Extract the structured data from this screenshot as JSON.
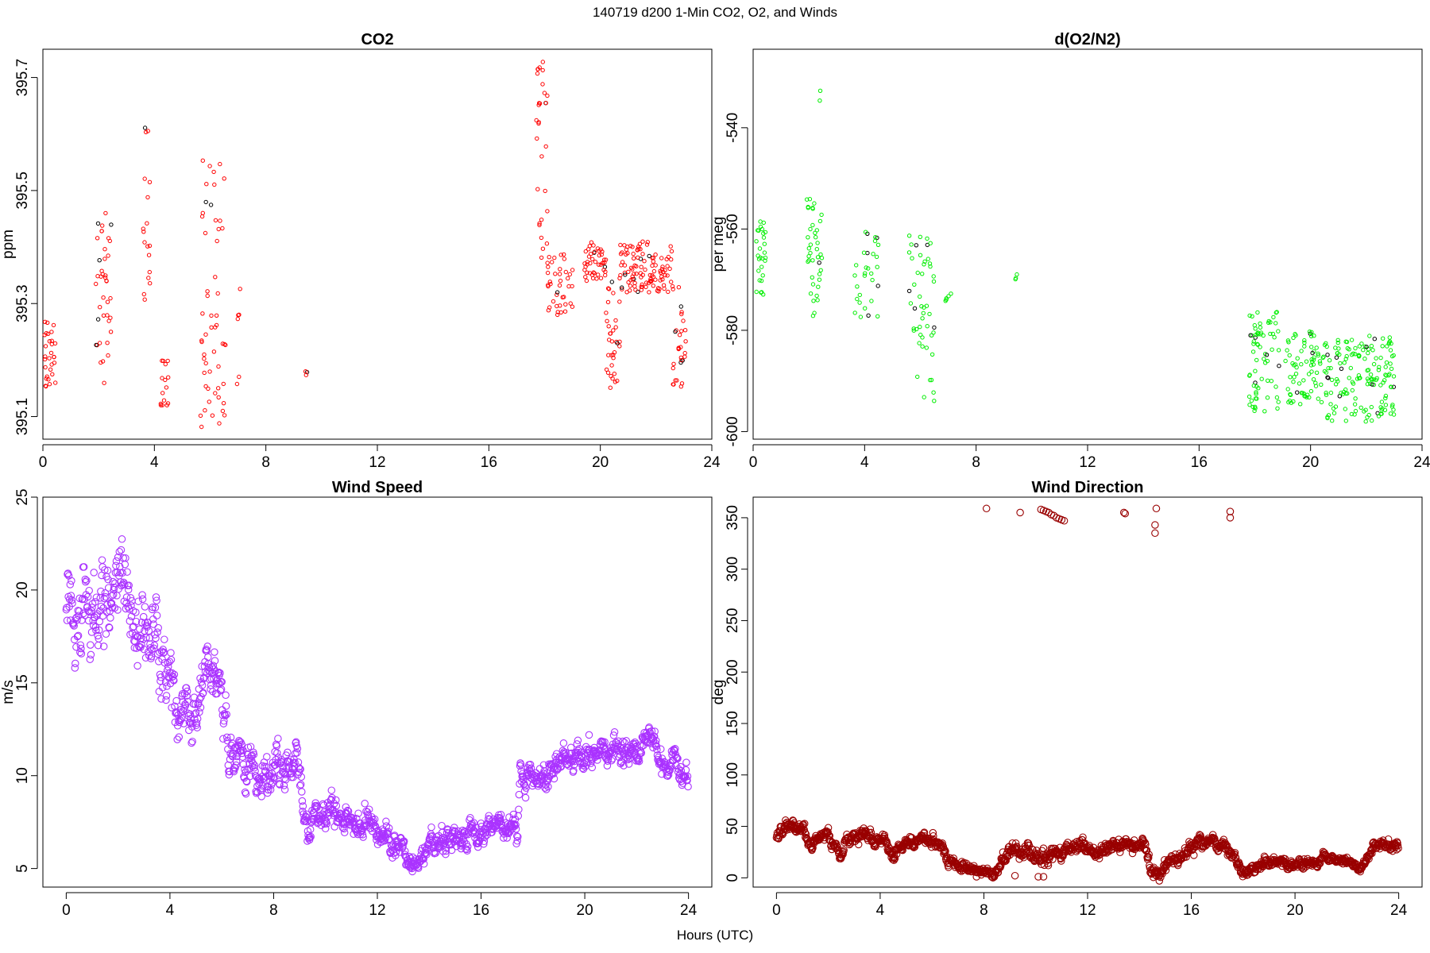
{
  "figure": {
    "title": "140719   d200   1-Min CO2, O2, and Winds",
    "xlabel": "Hours (UTC)"
  },
  "chart_data": [
    {
      "type": "scatter",
      "title": "CO2",
      "xlabel": "",
      "ylabel": "ppm",
      "xlim": [
        0,
        24
      ],
      "ylim": [
        395.06,
        395.75
      ],
      "xticks": [
        0,
        4,
        8,
        12,
        16,
        20,
        24
      ],
      "yticks": [
        395.1,
        395.3,
        395.5,
        395.7
      ],
      "ytick_labels": [
        "395.1",
        "395.3",
        "395.5",
        "395.7"
      ],
      "grid": false,
      "color": "#ff0000",
      "highlight_color": "#000000",
      "marker_radius": 2.2,
      "clusters": [
        {
          "x0": 0.05,
          "x1": 0.45,
          "ymin": 395.15,
          "ymax": 395.27,
          "n": 30
        },
        {
          "x0": 1.9,
          "x1": 2.45,
          "ymin": 395.15,
          "ymax": 395.46,
          "n": 40
        },
        {
          "x0": 3.6,
          "x1": 3.85,
          "ymin": 395.28,
          "ymax": 395.63,
          "n": 18
        },
        {
          "x0": 4.2,
          "x1": 4.5,
          "ymin": 395.12,
          "ymax": 395.2,
          "n": 15
        },
        {
          "x0": 5.65,
          "x1": 6.55,
          "ymin": 395.07,
          "ymax": 395.58,
          "n": 55
        },
        {
          "x0": 6.95,
          "x1": 7.1,
          "ymin": 395.14,
          "ymax": 395.34,
          "n": 6
        },
        {
          "x0": 9.4,
          "x1": 9.5,
          "ymin": 395.17,
          "ymax": 395.18,
          "n": 3
        },
        {
          "x0": 17.7,
          "x1": 18.1,
          "ymin": 395.38,
          "ymax": 395.74,
          "n": 30
        },
        {
          "x0": 18.1,
          "x1": 19.0,
          "ymin": 395.28,
          "ymax": 395.39,
          "n": 40
        },
        {
          "x0": 19.4,
          "x1": 20.2,
          "ymin": 395.34,
          "ymax": 395.41,
          "n": 45
        },
        {
          "x0": 20.2,
          "x1": 20.7,
          "ymin": 395.15,
          "ymax": 395.35,
          "n": 35
        },
        {
          "x0": 20.7,
          "x1": 22.6,
          "ymin": 395.32,
          "ymax": 395.41,
          "n": 110
        },
        {
          "x0": 22.6,
          "x1": 23.1,
          "ymin": 395.15,
          "ymax": 395.33,
          "n": 30
        }
      ]
    },
    {
      "type": "scatter",
      "title": "d(O2/N2)",
      "xlabel": "",
      "ylabel": "per meg",
      "xlim": [
        0,
        24
      ],
      "ylim": [
        -601.5,
        -524.5
      ],
      "xticks": [
        0,
        4,
        8,
        12,
        16,
        20,
        24
      ],
      "yticks": [
        -600,
        -580,
        -560,
        -540
      ],
      "ytick_labels": [
        "-600",
        "-580",
        "-560",
        "-540"
      ],
      "grid": false,
      "color": "#00ee00",
      "highlight_color": "#000000",
      "marker_radius": 2.2,
      "clusters": [
        {
          "x0": 0.1,
          "x1": 0.45,
          "ymin": -573,
          "ymax": -558,
          "n": 28
        },
        {
          "x0": 1.9,
          "x1": 2.5,
          "ymin": -578,
          "ymax": -554,
          "n": 40
        },
        {
          "x0": 2.38,
          "x1": 2.42,
          "ymin": -545,
          "ymax": -525,
          "n": 2
        },
        {
          "x0": 3.6,
          "x1": 4.5,
          "ymin": -578,
          "ymax": -560,
          "n": 30
        },
        {
          "x0": 5.6,
          "x1": 6.5,
          "ymin": -594,
          "ymax": -561,
          "n": 50
        },
        {
          "x0": 6.9,
          "x1": 7.1,
          "ymin": -575,
          "ymax": -572,
          "n": 5
        },
        {
          "x0": 9.4,
          "x1": 9.5,
          "ymin": -571,
          "ymax": -566,
          "n": 3
        },
        {
          "x0": 17.8,
          "x1": 18.9,
          "ymin": -596,
          "ymax": -576,
          "n": 70
        },
        {
          "x0": 19.1,
          "x1": 20.6,
          "ymin": -595,
          "ymax": -580,
          "n": 80
        },
        {
          "x0": 20.6,
          "x1": 23.0,
          "ymin": -598,
          "ymax": -581,
          "n": 150
        }
      ]
    },
    {
      "type": "scatter",
      "title": "Wind Speed",
      "xlabel": "",
      "ylabel": "m/s",
      "xlim": [
        -0.9,
        24.9
      ],
      "ylim": [
        4,
        25
      ],
      "xticks": [
        0,
        4,
        8,
        12,
        16,
        20,
        24
      ],
      "yticks": [
        5,
        10,
        15,
        20,
        25
      ],
      "ytick_labels": [
        "5",
        "10",
        "15",
        "20",
        "25"
      ],
      "grid": false,
      "color": "#aa33ff",
      "marker_radius": 4.2,
      "trend": {
        "x": [
          0,
          1,
          2,
          3,
          3.6,
          4.2,
          5.0,
          5.4,
          5.8,
          6.3,
          7.0,
          8.0,
          8.5,
          8.9,
          9.2,
          10,
          11,
          12,
          13,
          13.4,
          14,
          15,
          16,
          17,
          17.4,
          17.5,
          18.5,
          19,
          20,
          21,
          22,
          22.5,
          23,
          24
        ],
        "y": [
          19.5,
          19.0,
          20.5,
          18.0,
          17.5,
          14.0,
          13.5,
          16.0,
          15.5,
          11.5,
          10.5,
          10.0,
          10.0,
          11.5,
          7.0,
          8.0,
          7.5,
          6.5,
          6.2,
          5.0,
          6.5,
          6.5,
          7.0,
          7.0,
          7.0,
          10.0,
          10.0,
          10.5,
          11.5,
          11.0,
          11.5,
          12.3,
          10.5,
          10.0
        ],
        "spread": [
          2.0,
          2.5,
          2.0,
          2.0,
          2.0,
          1.2,
          1.2,
          1.2,
          1.2,
          1.0,
          0.9,
          0.9,
          0.9,
          0.9,
          0.7,
          0.6,
          0.6,
          0.6,
          0.6,
          0.6,
          0.6,
          0.6,
          0.6,
          0.6,
          0.6,
          0.6,
          0.6,
          0.6,
          0.7,
          0.6,
          0.6,
          0.6,
          0.6,
          0.6
        ],
        "n": 1440
      }
    },
    {
      "type": "scatter",
      "title": "Wind Direction",
      "xlabel": "",
      "ylabel": "deg",
      "xlim": [
        -0.9,
        24.9
      ],
      "ylim": [
        -9,
        370
      ],
      "xticks": [
        0,
        4,
        8,
        12,
        16,
        20,
        24
      ],
      "yticks": [
        0,
        50,
        100,
        150,
        200,
        250,
        300,
        350
      ],
      "ytick_labels": [
        "0",
        "50",
        "100",
        "150",
        "200",
        "250",
        "300",
        "350"
      ],
      "grid": false,
      "color": "#990000",
      "marker_radius": 4.2,
      "trend": {
        "x": [
          0,
          0.4,
          1,
          1.3,
          2,
          2.5,
          3,
          3.5,
          4.2,
          4.5,
          5,
          5.5,
          6,
          6.4,
          6.6,
          7.5,
          8.0,
          8.5,
          9.0,
          9.5,
          10.2,
          10.5,
          11.5,
          12,
          12.5,
          13,
          13.5,
          14.2,
          14.5,
          15,
          15.5,
          16,
          16.5,
          17.5,
          18,
          19,
          20,
          21,
          22,
          22.7,
          23,
          24
        ],
        "y": [
          40,
          50,
          50,
          35,
          40,
          25,
          45,
          40,
          36,
          20,
          35,
          38,
          32,
          35,
          8,
          12,
          4,
          5,
          25,
          28,
          20,
          18,
          30,
          30,
          20,
          30,
          32,
          30,
          0,
          15,
          20,
          30,
          40,
          25,
          5,
          15,
          12,
          18,
          15,
          12,
          30,
          33
        ],
        "spread": [
          6,
          6,
          6,
          6,
          6,
          6,
          6,
          6,
          5,
          5,
          5,
          5,
          5,
          5,
          5,
          5,
          4,
          4,
          6,
          6,
          6,
          6,
          6,
          6,
          6,
          6,
          6,
          6,
          6,
          6,
          6,
          6,
          6,
          6,
          4,
          4,
          4,
          4,
          4,
          4,
          4,
          4
        ],
        "n": 1440
      },
      "outliers": [
        {
          "x": 8.1,
          "y": 359
        },
        {
          "x": 9.4,
          "y": 355
        },
        {
          "x": 10.2,
          "y": 358
        },
        {
          "x": 10.3,
          "y": 357
        },
        {
          "x": 10.4,
          "y": 356
        },
        {
          "x": 10.5,
          "y": 355
        },
        {
          "x": 10.6,
          "y": 353
        },
        {
          "x": 10.7,
          "y": 352
        },
        {
          "x": 10.8,
          "y": 350
        },
        {
          "x": 10.9,
          "y": 349
        },
        {
          "x": 11.0,
          "y": 348
        },
        {
          "x": 11.1,
          "y": 347
        },
        {
          "x": 13.4,
          "y": 355
        },
        {
          "x": 13.45,
          "y": 354
        },
        {
          "x": 14.65,
          "y": 359
        },
        {
          "x": 14.6,
          "y": 343
        },
        {
          "x": 14.6,
          "y": 335
        },
        {
          "x": 17.5,
          "y": 356
        },
        {
          "x": 17.5,
          "y": 350
        },
        {
          "x": 9.2,
          "y": 2
        },
        {
          "x": 10.1,
          "y": 1
        },
        {
          "x": 10.3,
          "y": 1
        }
      ]
    }
  ]
}
